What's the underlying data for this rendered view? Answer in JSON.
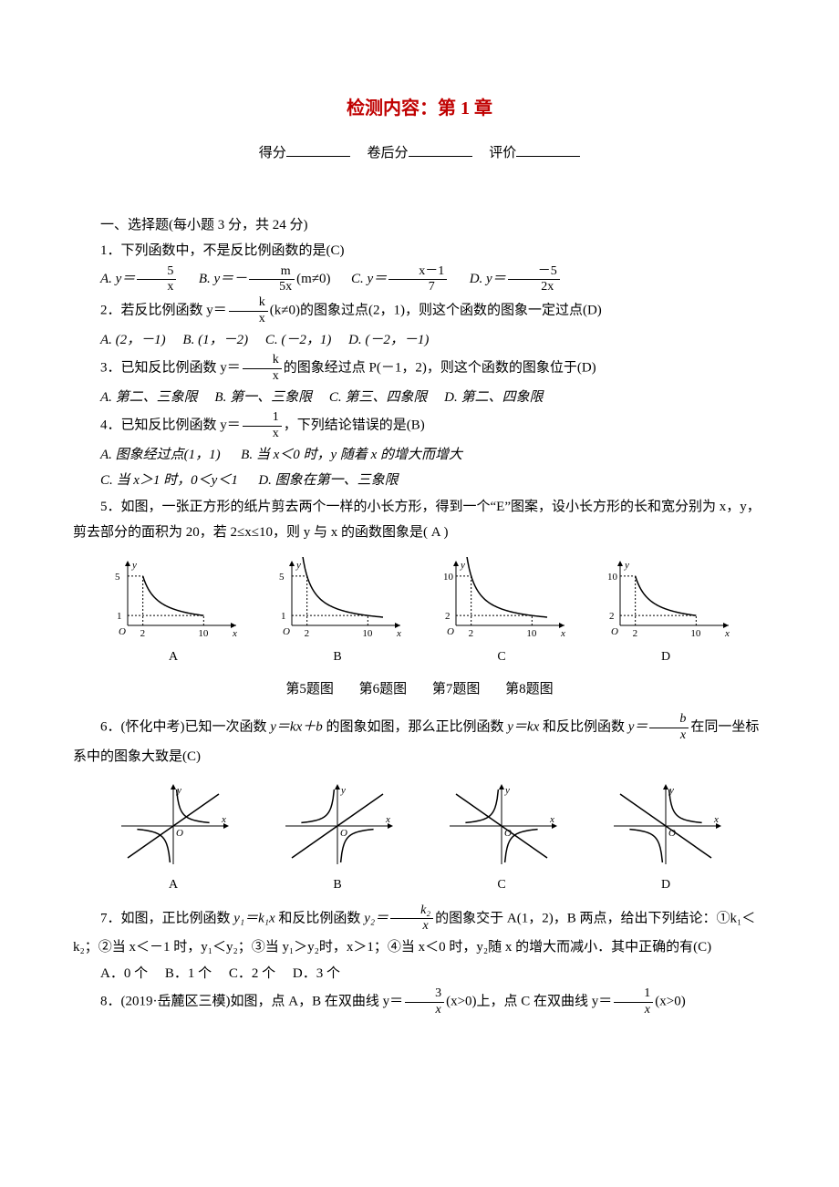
{
  "title": "检测内容：第 1 章",
  "score_labels": {
    "score": "得分",
    "back": "卷后分",
    "eval": "评价"
  },
  "section1": "一、选择题(每小题 3 分，共 24 分)",
  "q1": {
    "stem": "1．下列函数中，不是反比例函数的是(C)",
    "a_prefix": "A.  y＝",
    "a_num": "5",
    "a_den": "x",
    "b_prefix": "B.  y＝－",
    "b_num": "m",
    "b_den": "5x",
    "b_suffix": "(m≠0)",
    "c_prefix": "C.  y＝",
    "c_num": "x－1",
    "c_den": "7",
    "d_prefix": "D.  y＝",
    "d_num": "－5",
    "d_den": "2x"
  },
  "q2": {
    "stem_pre": "2．若反比例函数 y＝",
    "frac_num": "k",
    "frac_den": "x",
    "stem_post": "(k≠0)的图象过点(2，1)，则这个函数的图象一定过点(D)",
    "a": "A.  (2，－1)",
    "b": "B.  (1，－2)",
    "c": "C.  (－2，1)",
    "d": "D.  (－2，－1)"
  },
  "q3": {
    "stem_pre": "3．已知反比例函数 y＝",
    "frac_num": "k",
    "frac_den": "x",
    "stem_post": "的图象经过点 P(－1，2)，则这个函数的图象位于(D)",
    "a": "A.  第二、三象限",
    "b": "B.  第一、三象限",
    "c": "C.  第三、四象限",
    "d": "D.  第二、四象限"
  },
  "q4": {
    "stem_pre": "4．已知反比例函数 y＝",
    "frac_num": "1",
    "frac_den": "x",
    "stem_post": "，下列结论错误的是(B)",
    "a": "A.  图象经过点(1，1)",
    "b": "B.  当 x＜0 时，y 随着 x 的增大而增大",
    "c": "C.  当 x＞1 时，0＜y＜1",
    "d": "D.  图象在第一、三象限"
  },
  "q5": {
    "stem": "5．如图，一张正方形的纸片剪去两个一样的小长方形，得到一个“E”图案，设小长方形的长和宽分别为 x，y，剪去部分的面积为 20，若 2≤x≤10，则 y 与 x 的函数图象是( A )",
    "graphs": {
      "labels": [
        "A",
        "B",
        "C",
        "D"
      ],
      "yhigh": [
        5,
        5,
        10,
        10
      ],
      "ylow": [
        1,
        1,
        2,
        2
      ],
      "xlow": [
        2,
        2,
        2,
        2
      ],
      "xhigh": [
        10,
        10,
        10,
        10
      ],
      "clip": [
        true,
        false,
        false,
        true
      ]
    }
  },
  "fig_labels": {
    "t5": "第5题图",
    "t6": "第6题图",
    "t7": "第7题图",
    "t8": "第8题图"
  },
  "q6": {
    "stem_pre": "6．(怀化中考)已知一次函数 ",
    "expr1_pre": "y＝kx＋b",
    "stem_mid1": " 的图象如图，那么正比例函数 ",
    "expr2": "y＝kx",
    "stem_mid2": " 和反比例函数 ",
    "expr3_pre": "y＝",
    "frac_num": "b",
    "frac_den": "x",
    "stem_post": "在同一坐标系中的图象大致是(C)",
    "graphs": {
      "labels": [
        "A",
        "B",
        "C",
        "D"
      ],
      "line_slope": [
        1,
        1,
        -1,
        -1
      ],
      "hyper_q": [
        "13",
        "24",
        "24",
        "13"
      ]
    }
  },
  "q7": {
    "stem_pre": "7．如图，正比例函数 ",
    "e1": "y₁＝k₁x",
    "stem_mid": " 和反比例函数 ",
    "e2_pre": "y₂＝",
    "frac_num": "k₂",
    "frac_den": "x",
    "stem_post1": "的图象交于 A(1，2)，B 两点，给出下列结论：①k₁＜k₂；②当 x＜－1 时，y₁＜y₂；③当 y₁＞y₂时，x＞1；④当 x＜0 时，y₂随 x 的增大而减小．其中正确的有(C)",
    "a": "A．0 个",
    "b": "B．1 个",
    "c": "C．2 个",
    "d": "D．3 个"
  },
  "q8": {
    "pre": "8．(2019·岳麓区三模)如图，点 A，B 在双曲线 y＝",
    "f1_num": "3",
    "f1_den": "x",
    "mid": "(x>0)上，点 C 在双曲线 y＝",
    "f2_num": "1",
    "f2_den": "x",
    "post": "(x>0)"
  }
}
